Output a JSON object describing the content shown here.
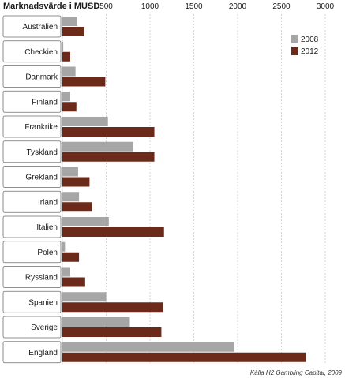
{
  "chart_data": {
    "type": "bar",
    "orientation": "horizontal",
    "title": "Marknadsvärde i MUSD",
    "source": "Källa H2 Gambling Capital, 2009",
    "xlim": [
      0,
      3000
    ],
    "xticks": [
      500,
      1000,
      1500,
      2000,
      2500,
      3000
    ],
    "grid": "vertical dashed",
    "legend_position": "top-right",
    "categories": [
      "Australien",
      "Checkien",
      "Danmark",
      "Finland",
      "Frankrike",
      "Tyskland",
      "Grekland",
      "Irland",
      "Italien",
      "Polen",
      "Ryssland",
      "Spanien",
      "Sverige",
      "England"
    ],
    "series": [
      {
        "name": "2008",
        "color": "#a6a6a6",
        "values": [
          170,
          10,
          150,
          90,
          520,
          810,
          180,
          190,
          530,
          30,
          90,
          500,
          770,
          1960
        ]
      },
      {
        "name": "2012",
        "color": "#6b2a1a",
        "values": [
          250,
          90,
          490,
          160,
          1050,
          1050,
          310,
          340,
          1160,
          190,
          260,
          1150,
          1130,
          2780
        ]
      }
    ]
  }
}
